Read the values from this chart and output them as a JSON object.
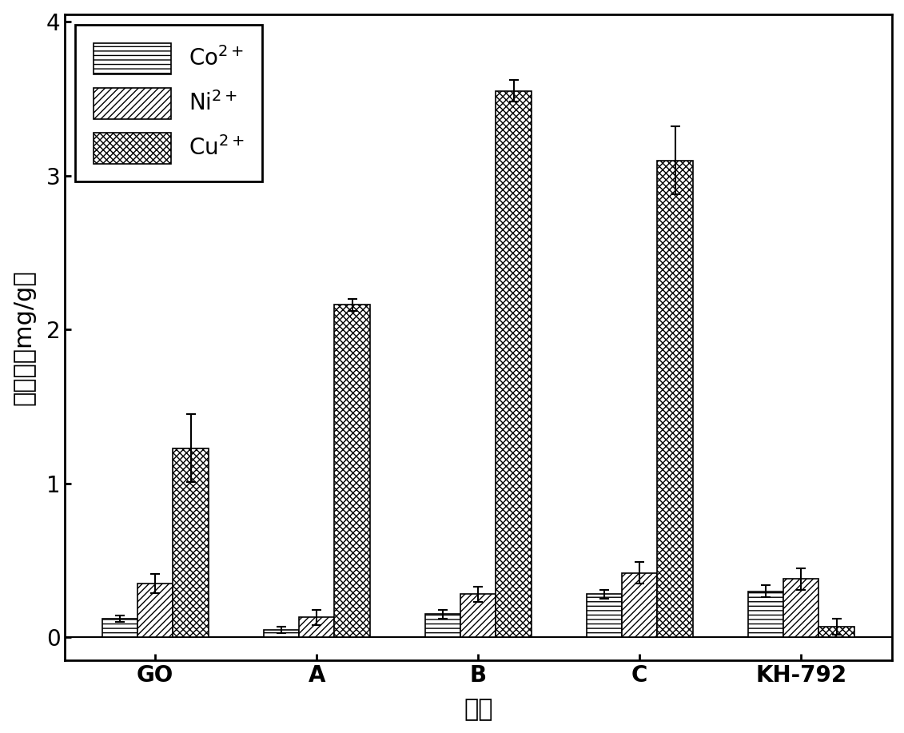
{
  "categories": [
    "GO",
    "A",
    "B",
    "C",
    "KH-792"
  ],
  "series": {
    "Co2+": {
      "values": [
        0.12,
        0.05,
        0.15,
        0.28,
        0.3
      ],
      "errors": [
        0.02,
        0.02,
        0.03,
        0.03,
        0.04
      ],
      "hatch": "=",
      "facecolor": "white",
      "edgecolor": "black"
    },
    "Ni2+": {
      "values": [
        0.35,
        0.13,
        0.28,
        0.42,
        0.38
      ],
      "errors": [
        0.06,
        0.05,
        0.05,
        0.07,
        0.07
      ],
      "hatch": "/",
      "facecolor": "white",
      "edgecolor": "black"
    },
    "Cu2+": {
      "values": [
        1.23,
        2.16,
        3.55,
        3.1,
        0.07
      ],
      "errors": [
        0.22,
        0.04,
        0.07,
        0.22,
        0.05
      ],
      "hatch": "x",
      "facecolor": "white",
      "edgecolor": "black"
    }
  },
  "xlabel_cn": "样品",
  "ylabel_cn": "吸附量（mg/g）",
  "ylim": [
    -0.15,
    4.05
  ],
  "yticks": [
    0,
    1,
    2,
    3,
    4
  ],
  "bar_width": 0.22,
  "tick_fontsize": 20,
  "label_fontsize": 22,
  "legend_fontsize": 20
}
